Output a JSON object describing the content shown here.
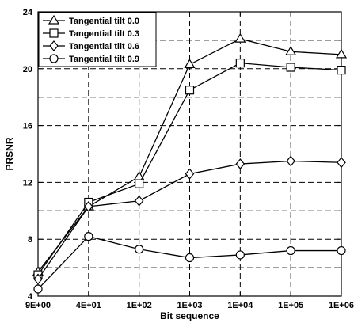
{
  "chart_data": {
    "type": "line",
    "title": "",
    "xlabel": "Bit sequence",
    "ylabel": "PRSNR",
    "categories": [
      "9E+00",
      "4E+01",
      "1E+02",
      "1E+03",
      "1E+04",
      "1E+05",
      "1E+06"
    ],
    "ylim": [
      4,
      24
    ],
    "yticks": [
      4,
      8,
      12,
      16,
      20,
      24
    ],
    "grid": true,
    "legend_position": "top-left",
    "series": [
      {
        "name": "Tangential tilt 0.0",
        "marker": "triangle",
        "values": [
          5.7,
          10.3,
          12.4,
          20.3,
          22.1,
          21.2,
          21.0
        ]
      },
      {
        "name": "Tangential tilt 0.3",
        "marker": "square",
        "values": [
          5.5,
          10.6,
          11.9,
          18.5,
          20.4,
          20.1,
          19.9
        ]
      },
      {
        "name": "Tangential tilt 0.6",
        "marker": "diamond",
        "values": [
          5.2,
          10.3,
          10.7,
          12.6,
          13.3,
          13.5,
          13.4
        ]
      },
      {
        "name": "Tangential tilt 0.9",
        "marker": "circle",
        "values": [
          4.5,
          8.2,
          7.3,
          6.7,
          6.9,
          7.2,
          7.2
        ]
      }
    ],
    "colors": {
      "line": "#000000",
      "marker_fill": "#ffffff",
      "background": "#ffffff"
    }
  }
}
